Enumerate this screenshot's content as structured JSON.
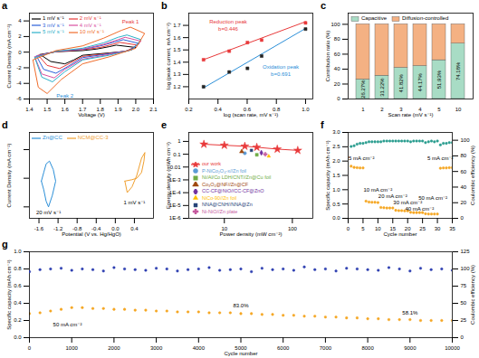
{
  "chart_data": [
    {
      "type": "line",
      "title": "a",
      "xlabel": "Voltage (V)",
      "ylabel": "Current Density (mA cm⁻²)",
      "xlim": [
        1.4,
        2.1
      ],
      "xticks": [
        1.4,
        1.5,
        1.6,
        1.7,
        1.8,
        1.9,
        {
          "value": 2,
          "label": "2.0"
        },
        2.1
      ],
      "ylim": [
        -6,
        5
      ],
      "yticks": [
        -6,
        -4,
        -2,
        0,
        2,
        4
      ],
      "legend": "upper left",
      "series": [
        {
          "name": "1 mV s⁻¹",
          "color": "#000000",
          "x": [
            1.46,
            1.55,
            1.7,
            1.78,
            1.85,
            1.89,
            2.0,
            1.94,
            1.85,
            1.7,
            1.65,
            1.6,
            1.52,
            1.46
          ],
          "values": [
            -0.3,
            0.05,
            0.2,
            0.4,
            0.7,
            0.9,
            0.6,
            0.1,
            -0.1,
            -0.4,
            -1.0,
            -1.5,
            -1.2,
            -0.3
          ]
        },
        {
          "name": "2 mV s⁻¹",
          "color": "#e8393a",
          "x": [
            1.45,
            1.55,
            1.7,
            1.8,
            1.87,
            1.91,
            2.01,
            1.95,
            1.85,
            1.7,
            1.63,
            1.57,
            1.5,
            1.45
          ],
          "values": [
            -0.4,
            0.05,
            0.3,
            0.6,
            1.0,
            1.25,
            0.9,
            0.15,
            -0.15,
            -0.55,
            -1.4,
            -2.1,
            -1.7,
            -0.4
          ]
        },
        {
          "name": "3 mV s⁻¹",
          "color": "#2b5fd9",
          "x": [
            1.44,
            1.55,
            1.7,
            1.8,
            1.88,
            1.93,
            2.02,
            1.96,
            1.85,
            1.7,
            1.62,
            1.55,
            1.48,
            1.44
          ],
          "values": [
            -0.5,
            0.1,
            0.35,
            0.8,
            1.3,
            1.6,
            1.1,
            0.2,
            -0.2,
            -0.7,
            -1.8,
            -2.7,
            -2.2,
            -0.5
          ]
        },
        {
          "name": "4 mV s⁻¹",
          "color": "#d94fa0",
          "x": [
            1.43,
            1.55,
            1.7,
            1.82,
            1.9,
            1.94,
            2.03,
            1.98,
            1.85,
            1.7,
            1.6,
            1.54,
            1.47,
            1.43
          ],
          "values": [
            -0.6,
            0.1,
            0.4,
            1.0,
            1.6,
            1.9,
            1.4,
            0.3,
            -0.3,
            -0.9,
            -2.2,
            -3.3,
            -2.8,
            -0.6
          ]
        },
        {
          "name": "5 mV s⁻¹",
          "color": "#2bb0c9",
          "x": [
            1.43,
            1.55,
            1.7,
            1.82,
            1.9,
            1.95,
            2.03,
            1.98,
            1.85,
            1.7,
            1.6,
            1.53,
            1.47,
            1.43
          ],
          "values": [
            -0.7,
            0.1,
            0.5,
            1.2,
            1.9,
            2.2,
            1.6,
            0.3,
            -0.4,
            -1.0,
            -2.5,
            -3.8,
            -3.2,
            -0.7
          ]
        },
        {
          "name": "10 mV s⁻¹",
          "color": "#f06c2a",
          "x": [
            1.42,
            1.55,
            1.7,
            1.82,
            1.92,
            1.97,
            2.05,
            2.0,
            1.85,
            1.7,
            1.58,
            1.5,
            1.45,
            1.42
          ],
          "values": [
            -1.0,
            0.2,
            0.8,
            1.8,
            2.8,
            3.2,
            2.4,
            0.5,
            -0.6,
            -1.5,
            -3.5,
            -5.3,
            -4.5,
            -1.0
          ]
        }
      ],
      "annotations": [
        {
          "text": "Peak 1",
          "x": 1.97,
          "y": 3.9,
          "color": "#e8393a"
        },
        {
          "text": "Peak 2",
          "x": 1.6,
          "y": -5.6,
          "color": "#2b8fd8"
        }
      ]
    },
    {
      "type": "scatter",
      "title": "b",
      "xlabel": "log (scan rate, mV s⁻¹)",
      "ylabel": "log (peak current, mA cm⁻²)",
      "xlim": [
        0.2,
        1.05
      ],
      "xticks": [
        0.2,
        0.4,
        0.6,
        0.8,
        {
          "value": 1,
          "label": "1.0"
        }
      ],
      "ylim": [
        1.1,
        1.8
      ],
      "yticks": [
        1.2,
        1.3,
        1.4,
        1.5,
        1.6,
        1.7
      ],
      "series": [
        {
          "type": "line",
          "color": "#e8393a",
          "x": [
            0.3,
            1.0
          ],
          "values": [
            1.42,
            1.73
          ]
        },
        {
          "type": "line",
          "color": "#2b8fd8",
          "x": [
            0.3,
            1.0
          ],
          "values": [
            1.19,
            1.675
          ]
        },
        {
          "type": "scatter",
          "marker": "square",
          "color": "#e8393a",
          "x": [
            0.301,
            0.477,
            0.602,
            0.699,
            1.0
          ],
          "values": [
            1.42,
            1.49,
            1.56,
            1.58,
            1.72
          ]
        },
        {
          "type": "scatter",
          "marker": "square",
          "color": "#222222",
          "x": [
            0.301,
            0.477,
            0.602,
            0.699,
            1.0
          ],
          "values": [
            1.2,
            1.32,
            1.35,
            1.45,
            1.67
          ]
        }
      ],
      "annotations": [
        {
          "text": "Reduction peak",
          "x": 0.47,
          "y": 1.73,
          "color": "#e8393a"
        },
        {
          "text": "b=0.446",
          "x": 0.47,
          "y": 1.67,
          "color": "#e8393a"
        },
        {
          "text": "Oxidation peak",
          "x": 0.83,
          "y": 1.36,
          "color": "#2b8fd8"
        },
        {
          "text": "b=0.691",
          "x": 0.83,
          "y": 1.3,
          "color": "#2b8fd8"
        }
      ]
    },
    {
      "type": "bar",
      "stacked": true,
      "title": "c",
      "xlabel": "Scan rate (mV s⁻¹)",
      "ylabel": "Contribution ratio (%)",
      "categories": [
        "1",
        "2",
        "3",
        "4",
        "5",
        "10"
      ],
      "ylim": [
        0,
        115
      ],
      "yticks": [
        0,
        20,
        40,
        60,
        80,
        100
      ],
      "legend": "upper left",
      "series": [
        {
          "name": "Capacitive",
          "color": "#a8dcc5",
          "values": [
            26.27,
            31.22,
            41.82,
            44.17,
            51.93,
            74.18
          ],
          "data_labels": true,
          "value_labels": [
            "26.27%",
            "31.22%",
            "41.82%",
            "44.17%",
            "51.93%",
            "74.18%"
          ]
        },
        {
          "name": "Diffusion-controlled",
          "color": "#f4b183",
          "values": [
            73.73,
            68.78,
            58.18,
            55.83,
            48.07,
            25.82
          ]
        }
      ]
    },
    {
      "type": "line",
      "title": "d",
      "xlabel": "Potential (V vs. Hg/HgO)",
      "ylabel": "Current Density (mA cm⁻²)",
      "xlim": [
        -1.8,
        0.8
      ],
      "xticks": [
        -1.6,
        -1.2,
        -0.8,
        -0.4,
        {
          "value": 0,
          "label": "0.0"
        },
        0.4
      ],
      "ylim": [
        -1.4,
        1.6
      ],
      "yticks": [
        -1,
        0,
        1
      ],
      "tick_labels": "x",
      "legend": "upper left",
      "series": [
        {
          "name": "Zn@CC",
          "color": "#2b8fd8",
          "x": [
            -1.55,
            -1.5,
            -1.45,
            -1.4,
            -1.32,
            -1.25,
            -1.3,
            -1.38,
            -1.45,
            -1.5,
            -1.55
          ],
          "values": [
            -0.1,
            -0.4,
            -0.8,
            -1.0,
            -0.6,
            -0.1,
            0.3,
            0.6,
            0.5,
            0.2,
            -0.1
          ]
        },
        {
          "name": "NCM@CC-3",
          "color": "#f0a030",
          "x": [
            0.2,
            0.35,
            0.45,
            0.55,
            0.6,
            0.62,
            0.55,
            0.45,
            0.35,
            0.25,
            0.2
          ],
          "values": [
            -0.1,
            -0.05,
            0,
            0.2,
            0.6,
            0.9,
            0.7,
            0.1,
            -0.3,
            -0.5,
            -0.1
          ]
        }
      ],
      "annotations": [
        {
          "text": "20 mV s⁻¹",
          "x": -1.4,
          "y": -1.2
        },
        {
          "text": "1 mV s⁻¹",
          "x": 0.4,
          "y": -0.85
        }
      ]
    },
    {
      "type": "scatter",
      "title": "e",
      "log": true,
      "xlabel": "Power density (mW cm⁻²)",
      "ylabel": "Energy density (mWh cm⁻²)",
      "xlim": [
        3,
        200
      ],
      "xticks": [
        10,
        100
      ],
      "ylim": [
        1e-06,
        5
      ],
      "yticks": [
        {
          "value": 1e-06,
          "label": "1E-6"
        },
        {
          "value": 1e-05,
          "label": "1E-5"
        },
        {
          "value": 0.0001,
          "label": "1E-4"
        },
        {
          "value": 0.001,
          "label": "1E-3"
        },
        0.01,
        0.1,
        1
      ],
      "legend": "lower left",
      "series": [
        {
          "name": "our work",
          "type": "line",
          "marker": "star",
          "color": "#e8393a",
          "x": [
            5,
            10,
            20,
            30,
            60,
            120
          ],
          "values": [
            0.6,
            0.5,
            0.42,
            0.35,
            0.25,
            0.2
          ]
        },
        {
          "name": "P-NiCo₂O₄-x//Zn foil",
          "marker": "circle",
          "color": "#5b9bd5",
          "x": [
            20
          ],
          "values": [
            0.12
          ]
        },
        {
          "name": "Ni/Al/Co LDH/CNT//Zn@Cu foil",
          "marker": "square",
          "color": "#70ad47",
          "x": [
            30
          ],
          "values": [
            0.09
          ]
        },
        {
          "name": "Co₃O₄@NF//Zn@CF",
          "marker": "triangle",
          "color": "#9e480e",
          "x": [
            18
          ],
          "values": [
            0.16
          ]
        },
        {
          "name": "CC-CF@NiO//CC-CF@ZnO",
          "marker": "diamond",
          "color": "#7030a0",
          "x": [
            35
          ],
          "values": [
            0.13
          ]
        },
        {
          "name": "NiCo-90//Zn foil",
          "marker": "triangle2",
          "color": "#ffc000",
          "x": [
            45
          ],
          "values": [
            0.07
          ]
        },
        {
          "name": "NNA@CNH//NNA@Zn",
          "marker": "square2",
          "color": "#264478",
          "x": [
            25
          ],
          "values": [
            0.2
          ]
        },
        {
          "name": "Ni-NiO//Zn plate",
          "marker": "cross",
          "color": "#c55a9e",
          "x": [
            40
          ],
          "values": [
            0.1
          ]
        }
      ]
    },
    {
      "type": "scatter",
      "title": "f",
      "xlabel": "Cycle number",
      "ylabel": "Specific capacity (mAh cm⁻²)",
      "y2label": "Coulombic efficiency (%)",
      "xlim": [
        0,
        35
      ],
      "xticks": [
        0,
        5,
        10,
        15,
        20,
        25,
        30,
        35
      ],
      "ylim": [
        0,
        3.0
      ],
      "yticks": [
        {
          "value": 0,
          "label": "0.0"
        },
        0.5,
        {
          "value": 1,
          "label": "1.0"
        },
        1.5,
        {
          "value": 2,
          "label": "2.0"
        },
        2.5,
        {
          "value": 3,
          "label": "3.0"
        }
      ],
      "y2lim": [
        0,
        110
      ],
      "y2ticks": [
        0,
        20,
        40,
        60,
        80,
        100
      ],
      "x": [
        1,
        2,
        3,
        4,
        5,
        6,
        7,
        8,
        9,
        10,
        11,
        12,
        13,
        14,
        15,
        16,
        17,
        18,
        19,
        20,
        21,
        22,
        23,
        24,
        25,
        26,
        27,
        28,
        29,
        30,
        31,
        32,
        33,
        34,
        35
      ],
      "series": [
        {
          "marker": "circle",
          "color": "#f5a623",
          "values": [
            1.82,
            1.78,
            1.77,
            1.76,
            1.76,
            0.6,
            0.57,
            0.56,
            0.56,
            0.55,
            0.38,
            0.37,
            0.36,
            0.36,
            0.36,
            0.28,
            0.27,
            0.27,
            0.26,
            0.26,
            0.21,
            0.2,
            0.2,
            0.2,
            0.2,
            0.16,
            0.15,
            0.15,
            0.15,
            0.15,
            1.75,
            1.76,
            1.76,
            1.77,
            1.77
          ]
        },
        {
          "marker": "circle",
          "color": "#2a9d8f",
          "axis": "y2",
          "values": [
            92,
            93,
            95,
            96,
            96,
            97,
            98,
            98,
            98,
            98,
            98,
            99,
            99,
            99,
            99,
            99,
            99,
            99,
            99,
            99,
            98,
            99,
            99,
            99,
            99,
            97,
            98,
            99,
            98,
            99,
            94,
            96,
            96,
            97,
            97
          ]
        }
      ],
      "annotations": [
        {
          "text": "5 mA cm⁻²",
          "x": 4.5,
          "y": 2.1
        },
        {
          "text": "10 mA cm⁻²",
          "x": 10,
          "y": 0.99
        },
        {
          "text": "20 mA cm⁻²",
          "x": 15,
          "y": 0.77
        },
        {
          "text": "30 mA cm⁻²",
          "x": 20,
          "y": 0.55
        },
        {
          "text": "40 mA cm⁻²",
          "x": 24,
          "y": 0.33
        },
        {
          "text": "50 mA cm⁻²",
          "x": 28.5,
          "y": 0.72
        },
        {
          "text": "5 mA cm⁻²",
          "x": 31,
          "y": 2.1
        }
      ]
    },
    {
      "type": "scatter",
      "title": "g",
      "xlabel": "Cycle number",
      "ylabel": "Specific capacity (mAh cm⁻²)",
      "y2label": "Coulombic efficiency (%)",
      "xlim": [
        0,
        10000
      ],
      "xticks": [
        0,
        1000,
        2000,
        3000,
        4000,
        5000,
        6000,
        7000,
        8000,
        9000,
        10000
      ],
      "ylim": [
        0,
        1.0
      ],
      "yticks": [
        {
          "value": 0,
          "label": "0.0"
        },
        0.2,
        0.4,
        0.6,
        0.8,
        {
          "value": 1,
          "label": "1.0"
        }
      ],
      "y2lim": [
        0,
        125
      ],
      "y2ticks": [
        0,
        25,
        50,
        75,
        100,
        125
      ],
      "x": [
        0,
        250,
        500,
        750,
        1000,
        1250,
        1500,
        1750,
        2000,
        2250,
        2500,
        2750,
        3000,
        3250,
        3500,
        3750,
        4000,
        4250,
        4500,
        4750,
        5000,
        5250,
        5500,
        5750,
        6000,
        6250,
        6500,
        6750,
        7000,
        7250,
        7500,
        7750,
        8000,
        8250,
        8500,
        8750,
        9000,
        9250,
        9500,
        9750,
        10000
      ],
      "series": [
        {
          "marker": "circle",
          "color": "#f5a623",
          "values": [
            0.28,
            0.29,
            0.31,
            0.33,
            0.35,
            0.35,
            0.34,
            0.34,
            0.33,
            0.33,
            0.32,
            0.32,
            0.31,
            0.31,
            0.3,
            0.3,
            0.3,
            0.29,
            0.29,
            0.29,
            0.28,
            0.28,
            0.27,
            0.27,
            0.26,
            0.26,
            0.25,
            0.25,
            0.24,
            0.24,
            0.23,
            0.23,
            0.22,
            0.22,
            0.21,
            0.21,
            0.21,
            0.2,
            0.2,
            0.2,
            0.2
          ]
        },
        {
          "marker": "circle",
          "color": "#2d3eb0",
          "axis": "y2",
          "values": [
            96,
            99,
            100,
            101,
            98,
            100,
            99,
            97,
            102,
            100,
            99,
            98,
            101,
            100,
            97,
            99,
            100,
            102,
            98,
            99,
            100,
            96,
            101,
            99,
            100,
            98,
            103,
            99,
            100,
            97,
            101,
            100,
            99,
            98,
            102,
            100,
            97,
            101,
            99,
            100,
            98
          ]
        }
      ],
      "annotations": [
        {
          "text": "50 mA cm⁻²",
          "x": 900,
          "y": 0.15
        },
        {
          "text": "83.0%",
          "x": 5000,
          "y": 0.37
        },
        {
          "text": "58.1%",
          "x": 9000,
          "y": 0.29
        }
      ]
    }
  ]
}
